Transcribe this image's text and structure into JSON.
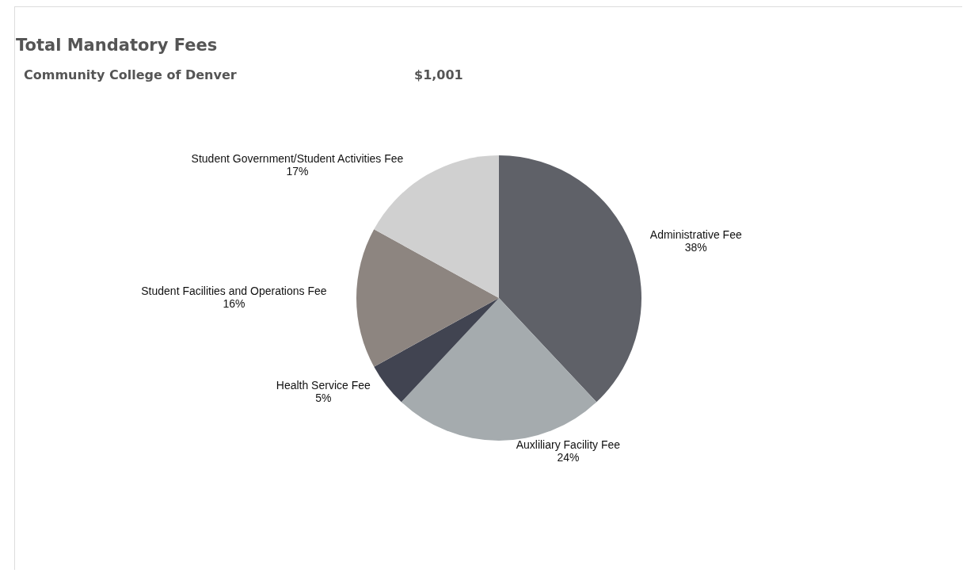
{
  "chart_data": {
    "type": "pie",
    "title": "Total Mandatory Fees",
    "subtitle": "Community College of Denver",
    "annotations": [
      "$1,001"
    ],
    "categories": [
      "Administrative Fee",
      "Auxliliary Facility Fee",
      "Health Service Fee",
      "Student Facilities and Operations Fee",
      "Student Government/Student Activities Fee"
    ],
    "values": [
      38,
      24,
      5,
      16,
      17
    ],
    "value_labels": [
      "38%",
      "24%",
      "5%",
      "16%",
      "17%"
    ],
    "colors": [
      "#5f6168",
      "#a5abae",
      "#414451",
      "#8d8580",
      "#d0d0d0"
    ]
  }
}
